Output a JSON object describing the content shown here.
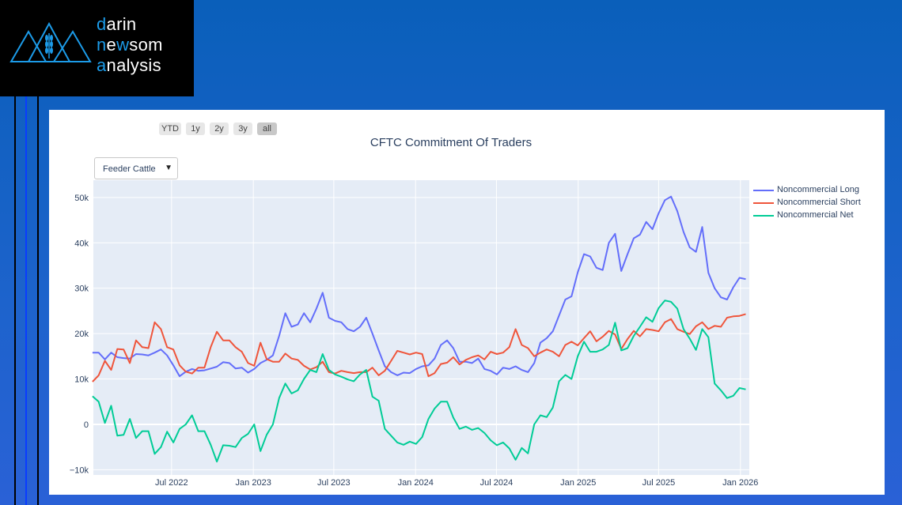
{
  "logo": {
    "lines": [
      [
        {
          "t": "d",
          "blue": true
        },
        {
          "t": "arin",
          "blue": false
        }
      ],
      [
        {
          "t": "n",
          "blue": true
        },
        {
          "t": "e",
          "blue": false
        },
        {
          "t": "w",
          "blue": true
        },
        {
          "t": "som",
          "blue": false
        }
      ],
      [
        {
          "t": "a",
          "blue": true
        },
        {
          "t": "nalysis",
          "blue": false
        }
      ]
    ],
    "text": "darin newsom analysis"
  },
  "range_buttons": [
    {
      "label": "YTD",
      "active": false
    },
    {
      "label": "1y",
      "active": false
    },
    {
      "label": "2y",
      "active": false
    },
    {
      "label": "3y",
      "active": false
    },
    {
      "label": "all",
      "active": true
    }
  ],
  "dropdown": {
    "selected": "Feeder Cattle",
    "arrow": "▼"
  },
  "colors": {
    "long": "#636efa",
    "short": "#ef553b",
    "net": "#00cc96",
    "plot_bg": "#e5ecf6"
  },
  "chart_data": {
    "type": "line",
    "title": "CFTC Commitment Of Traders",
    "xlabel": "",
    "ylabel": "",
    "x_start": "2022-01-04",
    "x_step_days": 14,
    "x_range": [
      "2022-01-06",
      "2026-01-21"
    ],
    "ylim": [
      -11150,
      53800
    ],
    "y_ticks": [
      {
        "v": -10000,
        "label": "−10k"
      },
      {
        "v": 0,
        "label": "0"
      },
      {
        "v": 10000,
        "label": "10k"
      },
      {
        "v": 20000,
        "label": "20k"
      },
      {
        "v": 30000,
        "label": "30k"
      },
      {
        "v": 40000,
        "label": "40k"
      },
      {
        "v": 50000,
        "label": "50k"
      }
    ],
    "x_ticks": [
      {
        "date": "2022-07-01",
        "label": "Jul 2022"
      },
      {
        "date": "2023-01-01",
        "label": "Jan 2023"
      },
      {
        "date": "2023-07-01",
        "label": "Jul 2023"
      },
      {
        "date": "2024-01-01",
        "label": "Jan 2024"
      },
      {
        "date": "2024-07-01",
        "label": "Jul 2024"
      },
      {
        "date": "2025-01-01",
        "label": "Jan 2025"
      },
      {
        "date": "2025-07-01",
        "label": "Jul 2025"
      },
      {
        "date": "2026-01-01",
        "label": "Jan 2026"
      }
    ],
    "grid": true,
    "legend_position": "right",
    "value_scale": 1000,
    "series": [
      {
        "name": "Noncommercial Long",
        "key": "long",
        "values": [
          15.8,
          15.8,
          14.3,
          15.8,
          14.8,
          14.6,
          14.5,
          15.5,
          15.4,
          15.2,
          15.8,
          16.5,
          15.2,
          13,
          10.6,
          11.6,
          12.2,
          11.8,
          11.9,
          12.3,
          12.7,
          13.7,
          13.5,
          12.3,
          12.5,
          11.4,
          12.2,
          13.5,
          14.2,
          15.2,
          19.5,
          24.5,
          21.5,
          22,
          24.5,
          22.5,
          25.5,
          29,
          23.5,
          22.8,
          22.5,
          21,
          20.5,
          21.5,
          23.5,
          20,
          16.3,
          12.8,
          11.5,
          10.8,
          11.4,
          11.3,
          12.2,
          12.8,
          13,
          14.5,
          17.5,
          18.5,
          16.8,
          13.8,
          13.8,
          13.5,
          14.5,
          12.2,
          11.8,
          11,
          12.5,
          12.2,
          12.8,
          12,
          11.5,
          13.5,
          18,
          19,
          20.5,
          24,
          27.5,
          28.2,
          33.5,
          37.5,
          37,
          34.5,
          34,
          40,
          42,
          33.8,
          37.5,
          41,
          41.8,
          44.6,
          43,
          46.5,
          49.4,
          50.2,
          47,
          42.4,
          39,
          38,
          43.5,
          33.4,
          30,
          28,
          27.5,
          30.2,
          32.3,
          32
        ]
      },
      {
        "name": "Noncommercial Short",
        "key": "short",
        "values": [
          9.4,
          10.8,
          14,
          12,
          16.6,
          16.5,
          13.5,
          18.5,
          17,
          16.8,
          22.5,
          21,
          17,
          16.5,
          13,
          11.6,
          11.2,
          12.5,
          12.5,
          17,
          20.4,
          18.5,
          18.5,
          17,
          16,
          13.5,
          12.9,
          18,
          14.4,
          13.8,
          13.8,
          15.6,
          14.5,
          14.2,
          12.9,
          12.1,
          12.6,
          13.8,
          11.5,
          11.2,
          11.8,
          11.5,
          11.3,
          11.5,
          11.5,
          12.5,
          10.8,
          11.8,
          14,
          16.2,
          15.8,
          15.4,
          15.8,
          15.5,
          10.6,
          11.3,
          13.3,
          13.6,
          14.8,
          13.2,
          14.2,
          14.8,
          15.2,
          14.3,
          16,
          15.5,
          15.8,
          17,
          21,
          17.5,
          16.8,
          15,
          15.8,
          16.5,
          16,
          15,
          17.5,
          18.2,
          17.4,
          19,
          20.5,
          18.3,
          19.3,
          20.6,
          19.8,
          16.6,
          18.8,
          20.6,
          19.4,
          21,
          20.8,
          20.5,
          22.5,
          23.2,
          21,
          20.4,
          19.9,
          21.6,
          22.5,
          21,
          21.7,
          21.5,
          23.5,
          23.8,
          23.9,
          24.3
        ]
      },
      {
        "name": "Noncommercial Net",
        "key": "net",
        "values": [
          6.2,
          5,
          0.3,
          4.1,
          -2.5,
          -2.3,
          1.2,
          -3,
          -1.5,
          -1.5,
          -6.5,
          -5,
          -1.6,
          -4,
          -1,
          0,
          2,
          -1.5,
          -1.5,
          -4.5,
          -8.2,
          -4.6,
          -4.7,
          -5,
          -3,
          -2.1,
          0,
          -5.9,
          -2.3,
          0,
          5.8,
          9,
          6.8,
          7.5,
          10,
          12,
          11.5,
          15.5,
          12,
          11,
          10.5,
          9.9,
          9.5,
          11,
          12,
          6.1,
          5.2,
          -1,
          -2.5,
          -4,
          -4.5,
          -3.8,
          -4.3,
          -2.8,
          1.2,
          3.5,
          5,
          5,
          1.5,
          -1,
          -0.5,
          -1.2,
          -0.8,
          -1.9,
          -3.5,
          -4.6,
          -4,
          -5.3,
          -7.8,
          -5.2,
          -6.4,
          0,
          2,
          1.6,
          3.7,
          9.5,
          10.9,
          10,
          15,
          18.2,
          16,
          16,
          16.5,
          17.5,
          22.4,
          16.3,
          16.8,
          19.5,
          21.5,
          23.6,
          22.6,
          25.6,
          27.3,
          27,
          25.5,
          21,
          18.9,
          16.4,
          21,
          19.2,
          9,
          7.5,
          5.8,
          6.3,
          8,
          7.7
        ]
      }
    ]
  }
}
